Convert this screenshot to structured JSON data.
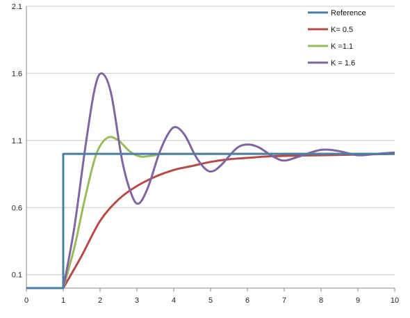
{
  "chart_data": {
    "type": "line",
    "title": "",
    "xlabel": "",
    "ylabel": "",
    "xlim": [
      0,
      10
    ],
    "ylim": [
      0,
      2.1
    ],
    "x_ticks": [
      "0",
      "1",
      "2",
      "3",
      "4",
      "5",
      "6",
      "7",
      "8",
      "9",
      "10"
    ],
    "y_ticks": [
      "0.1",
      "0.6",
      "1.1",
      "1.6",
      "2.1"
    ],
    "grid": "horizontal",
    "legend_position": "top-right",
    "series": [
      {
        "name": "Reference",
        "color": "#4a7ea6",
        "points": [
          [
            0,
            0
          ],
          [
            1,
            0
          ],
          [
            1,
            1
          ],
          [
            10,
            1
          ]
        ]
      },
      {
        "name": "K= 0.5",
        "color": "#b84a45",
        "points": [
          [
            0,
            0
          ],
          [
            1,
            0
          ],
          [
            1.5,
            0.24
          ],
          [
            2,
            0.5
          ],
          [
            2.5,
            0.66
          ],
          [
            3,
            0.76
          ],
          [
            3.5,
            0.83
          ],
          [
            4,
            0.88
          ],
          [
            4.5,
            0.91
          ],
          [
            5,
            0.94
          ],
          [
            5.5,
            0.96
          ],
          [
            6,
            0.97
          ],
          [
            6.5,
            0.98
          ],
          [
            7,
            0.985
          ],
          [
            8,
            0.99
          ],
          [
            9,
            0.995
          ],
          [
            10,
            1.0
          ]
        ]
      },
      {
        "name": "K =1.1",
        "color": "#97bd5a",
        "points": [
          [
            0,
            0
          ],
          [
            1,
            0
          ],
          [
            1.3,
            0.3
          ],
          [
            1.6,
            0.68
          ],
          [
            1.9,
            1.0
          ],
          [
            2.2,
            1.12
          ],
          [
            2.5,
            1.1
          ],
          [
            2.8,
            1.02
          ],
          [
            3.1,
            0.98
          ],
          [
            3.5,
            0.99
          ],
          [
            4,
            1.0
          ],
          [
            10,
            1.0
          ]
        ]
      },
      {
        "name": "K = 1.6",
        "color": "#8164a2",
        "points": [
          [
            0,
            0
          ],
          [
            1,
            0
          ],
          [
            1.3,
            0.45
          ],
          [
            1.6,
            1.05
          ],
          [
            1.85,
            1.48
          ],
          [
            2.05,
            1.6
          ],
          [
            2.3,
            1.45
          ],
          [
            2.6,
            0.95
          ],
          [
            2.85,
            0.7
          ],
          [
            3.05,
            0.63
          ],
          [
            3.3,
            0.75
          ],
          [
            3.6,
            1.0
          ],
          [
            3.85,
            1.15
          ],
          [
            4.05,
            1.2
          ],
          [
            4.3,
            1.14
          ],
          [
            4.6,
            0.98
          ],
          [
            4.85,
            0.89
          ],
          [
            5.05,
            0.87
          ],
          [
            5.3,
            0.92
          ],
          [
            5.7,
            1.04
          ],
          [
            6.0,
            1.07
          ],
          [
            6.3,
            1.05
          ],
          [
            6.7,
            0.98
          ],
          [
            7.0,
            0.95
          ],
          [
            7.4,
            0.98
          ],
          [
            8.0,
            1.03
          ],
          [
            8.5,
            1.02
          ],
          [
            9.0,
            0.99
          ],
          [
            9.5,
            1.0
          ],
          [
            10.0,
            1.01
          ]
        ]
      }
    ]
  }
}
